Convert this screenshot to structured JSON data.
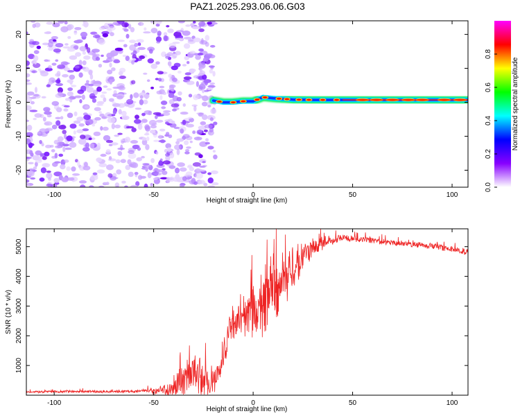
{
  "title": "PAZ1.2025.293.06.06.G03",
  "chart_data": [
    {
      "type": "heatmap",
      "name": "spectrogram",
      "xlabel": "Height of straight line (km)",
      "ylabel": "Frequency (Hz)",
      "xlim": [
        -114,
        108
      ],
      "ylim": [
        -25,
        24
      ],
      "xticks": [
        -100,
        -50,
        0,
        50,
        100
      ],
      "yticks": [
        -20,
        -10,
        0,
        10,
        20
      ],
      "noise_region": [
        -114,
        -19
      ],
      "signal_line": {
        "x_start": -20,
        "x_end": 108,
        "frequency_hz": [
          [
            -20,
            0.5
          ],
          [
            -15,
            0.0
          ],
          [
            -10,
            0.0
          ],
          [
            -5,
            0.3
          ],
          [
            0,
            0.3
          ],
          [
            5,
            1.5
          ],
          [
            10,
            1.2
          ],
          [
            20,
            0.8
          ],
          [
            30,
            0.7
          ],
          [
            50,
            0.7
          ],
          [
            80,
            0.7
          ],
          [
            108,
            0.7
          ]
        ]
      },
      "colorbar": {
        "label": "Normalized spectral amplitude",
        "range": [
          0.0,
          1.0
        ],
        "ticks": [
          "0.0",
          "0.2",
          "0.4",
          "0.6",
          "0.8"
        ],
        "colors": [
          "#ffffff",
          "#8800ff",
          "#0000ff",
          "#00ffff",
          "#00ff00",
          "#ffff00",
          "#ff0000",
          "#ff00ff"
        ]
      }
    },
    {
      "type": "line",
      "name": "snr",
      "xlabel": "Height of straight line (km)",
      "ylabel": "SNR (10 * v/v)",
      "xlim": [
        -114,
        108
      ],
      "ylim": [
        0,
        5600
      ],
      "xticks": [
        -100,
        -50,
        0,
        50,
        100
      ],
      "yticks": [
        1000,
        2000,
        3000,
        4000,
        5000
      ],
      "color": "#ee2222",
      "envelope": [
        [
          -114,
          150
        ],
        [
          -60,
          160
        ],
        [
          -50,
          220
        ],
        [
          -42,
          400
        ],
        [
          -37,
          900
        ],
        [
          -32,
          1200
        ],
        [
          -28,
          1300
        ],
        [
          -24,
          1000
        ],
        [
          -20,
          900
        ],
        [
          -16,
          1300
        ],
        [
          -14,
          2000
        ],
        [
          -12,
          2800
        ],
        [
          -8,
          3200
        ],
        [
          -4,
          3400
        ],
        [
          0,
          3700
        ],
        [
          4,
          4000
        ],
        [
          8,
          4200
        ],
        [
          12,
          4400
        ],
        [
          16,
          4700
        ],
        [
          20,
          4900
        ],
        [
          25,
          5100
        ],
        [
          30,
          5200
        ],
        [
          35,
          5300
        ],
        [
          40,
          5350
        ],
        [
          45,
          5380
        ],
        [
          50,
          5350
        ],
        [
          60,
          5300
        ],
        [
          70,
          5200
        ],
        [
          80,
          5150
        ],
        [
          90,
          5100
        ],
        [
          100,
          5000
        ],
        [
          108,
          4900
        ]
      ],
      "noise_amplitude": [
        [
          -114,
          50
        ],
        [
          -55,
          50
        ],
        [
          -45,
          200
        ],
        [
          -35,
          700
        ],
        [
          -25,
          900
        ],
        [
          -18,
          500
        ],
        [
          -12,
          700
        ],
        [
          -5,
          900
        ],
        [
          5,
          1300
        ],
        [
          15,
          1100
        ],
        [
          25,
          600
        ],
        [
          30,
          350
        ],
        [
          45,
          120
        ],
        [
          108,
          120
        ]
      ]
    }
  ]
}
